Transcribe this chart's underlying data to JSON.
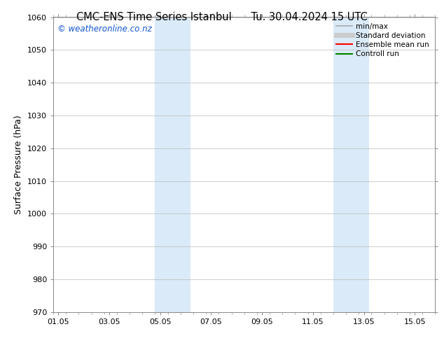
{
  "title_left": "CMC-ENS Time Series Istanbul",
  "title_right": "Tu. 30.04.2024 15 UTC",
  "ylabel": "Surface Pressure (hPa)",
  "ylim": [
    970,
    1060
  ],
  "yticks": [
    970,
    980,
    990,
    1000,
    1010,
    1020,
    1030,
    1040,
    1050,
    1060
  ],
  "xtick_labels": [
    "01.05",
    "03.05",
    "05.05",
    "07.05",
    "09.05",
    "11.05",
    "13.05",
    "15.05"
  ],
  "xtick_positions": [
    0,
    2,
    4,
    6,
    8,
    10,
    12,
    14
  ],
  "xlim": [
    -0.2,
    14.7
  ],
  "shaded_bands": [
    {
      "x_start": 3.8,
      "x_end": 5.2
    },
    {
      "x_start": 10.8,
      "x_end": 12.2
    }
  ],
  "shaded_color": "#daeaf8",
  "watermark_text": "© weatheronline.co.nz",
  "watermark_color": "#1155cc",
  "bg_color": "#ffffff",
  "grid_color": "#bbbbbb",
  "legend_entries": [
    {
      "label": "min/max",
      "color": "#aaaaaa",
      "linewidth": 1.2
    },
    {
      "label": "Standard deviation",
      "color": "#cccccc",
      "linewidth": 5
    },
    {
      "label": "Ensemble mean run",
      "color": "#ff0000",
      "linewidth": 1.5
    },
    {
      "label": "Controll run",
      "color": "#008000",
      "linewidth": 1.5
    }
  ],
  "title_fontsize": 10.5,
  "axis_label_fontsize": 9,
  "tick_fontsize": 8,
  "legend_fontsize": 7.5,
  "watermark_fontsize": 8.5
}
